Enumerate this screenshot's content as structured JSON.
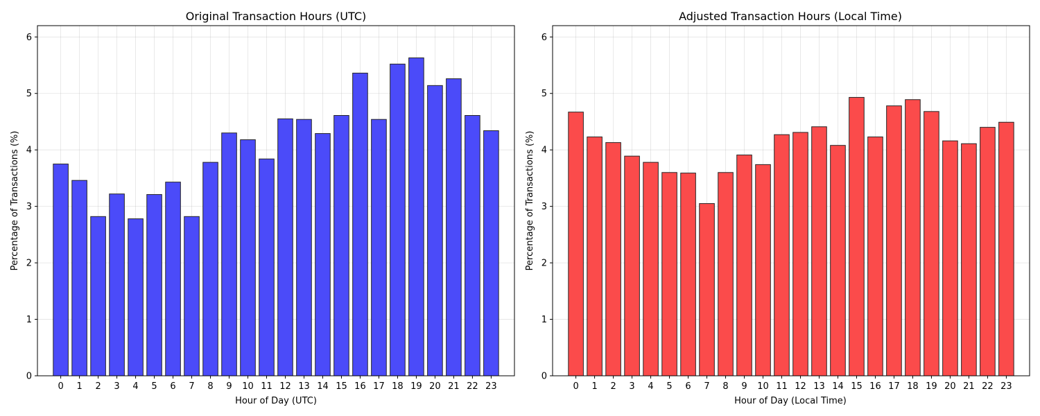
{
  "chart_data": [
    {
      "type": "bar",
      "title": "Original Transaction Hours (UTC)",
      "xlabel": "Hour of Day (UTC)",
      "ylabel": "Percentage of Transactions (%)",
      "categories": [
        "0",
        "1",
        "2",
        "3",
        "4",
        "5",
        "6",
        "7",
        "8",
        "9",
        "10",
        "11",
        "12",
        "13",
        "14",
        "15",
        "16",
        "17",
        "18",
        "19",
        "20",
        "21",
        "22",
        "23"
      ],
      "values": [
        3.75,
        3.46,
        2.82,
        3.22,
        2.78,
        3.21,
        3.43,
        2.82,
        3.78,
        4.3,
        4.18,
        3.84,
        4.55,
        4.54,
        4.29,
        4.61,
        5.36,
        4.54,
        5.52,
        5.63,
        5.14,
        5.26,
        4.61,
        4.34
      ],
      "ylim": [
        0,
        6.2
      ],
      "yticks": [
        "0",
        "1",
        "2",
        "3",
        "4",
        "5",
        "6"
      ],
      "grid": true,
      "color": "#4b4bf9"
    },
    {
      "type": "bar",
      "title": "Adjusted Transaction Hours (Local Time)",
      "xlabel": "Hour of Day (Local Time)",
      "ylabel": "Percentage of Transactions (%)",
      "categories": [
        "0",
        "1",
        "2",
        "3",
        "4",
        "5",
        "6",
        "7",
        "8",
        "9",
        "10",
        "11",
        "12",
        "13",
        "14",
        "15",
        "16",
        "17",
        "18",
        "19",
        "20",
        "21",
        "22",
        "23"
      ],
      "values": [
        4.67,
        4.23,
        4.13,
        3.89,
        3.78,
        3.6,
        3.59,
        3.05,
        3.6,
        3.91,
        3.74,
        4.27,
        4.31,
        4.41,
        4.08,
        4.93,
        4.23,
        4.78,
        4.89,
        4.68,
        4.16,
        4.11,
        4.4,
        4.49
      ],
      "ylim": [
        0,
        6.2
      ],
      "yticks": [
        "0",
        "1",
        "2",
        "3",
        "4",
        "5",
        "6"
      ],
      "grid": true,
      "color": "#fb4b4b"
    }
  ]
}
